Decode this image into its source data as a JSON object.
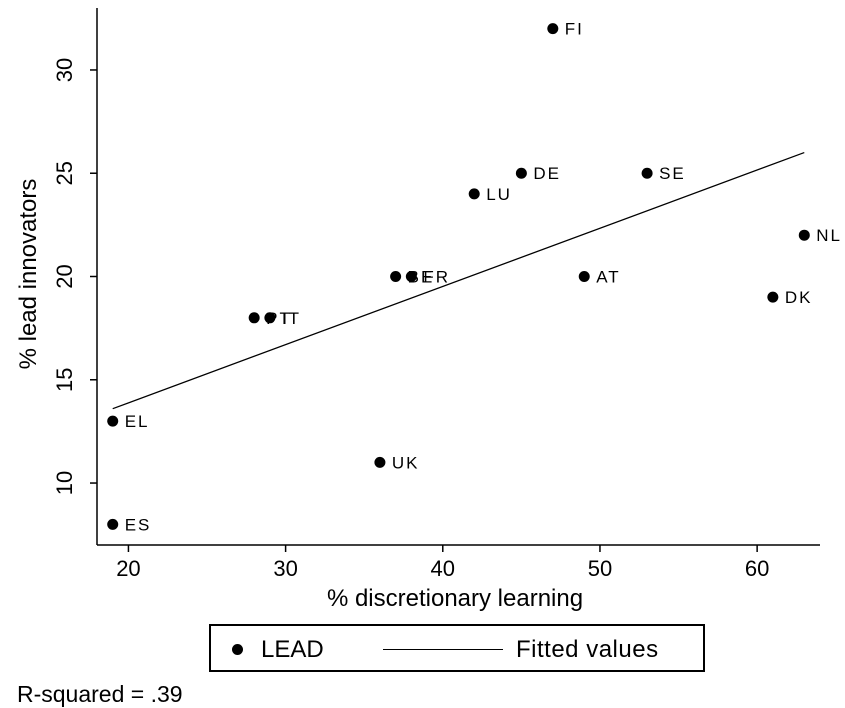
{
  "chart_data": {
    "type": "scatter",
    "xlabel": "% discretionary learning",
    "ylabel": "% lead innovators",
    "xlim": [
      18,
      64
    ],
    "ylim": [
      7,
      33
    ],
    "xticks": [
      20,
      30,
      40,
      50,
      60
    ],
    "yticks": [
      10,
      15,
      20,
      25,
      30
    ],
    "grid": false,
    "legend_position": "bottom",
    "series": [
      {
        "name": "LEAD",
        "marker": "filled-circle",
        "points": [
          {
            "label": "FI",
            "x": 47,
            "y": 32
          },
          {
            "label": "SE",
            "x": 53,
            "y": 25
          },
          {
            "label": "DE",
            "x": 45,
            "y": 25
          },
          {
            "label": "LU",
            "x": 42,
            "y": 24
          },
          {
            "label": "NL",
            "x": 63,
            "y": 22
          },
          {
            "label": "AT",
            "x": 49,
            "y": 20
          },
          {
            "label": "BE",
            "x": 37,
            "y": 20
          },
          {
            "label": "FR",
            "x": 38,
            "y": 20
          },
          {
            "label": "DK",
            "x": 61,
            "y": 19
          },
          {
            "label": "PT",
            "x": 28,
            "y": 18
          },
          {
            "label": "IT",
            "x": 29,
            "y": 18
          },
          {
            "label": "EL",
            "x": 19,
            "y": 13
          },
          {
            "label": "UK",
            "x": 36,
            "y": 11
          },
          {
            "label": "ES",
            "x": 19,
            "y": 8
          }
        ]
      },
      {
        "name": "Fitted values",
        "type": "line",
        "x": [
          19,
          63
        ],
        "y": [
          13.6,
          26
        ]
      }
    ]
  },
  "legend": {
    "lead_label": "LEAD",
    "fit_label": "Fitted values"
  },
  "note": "R-squared = .39"
}
